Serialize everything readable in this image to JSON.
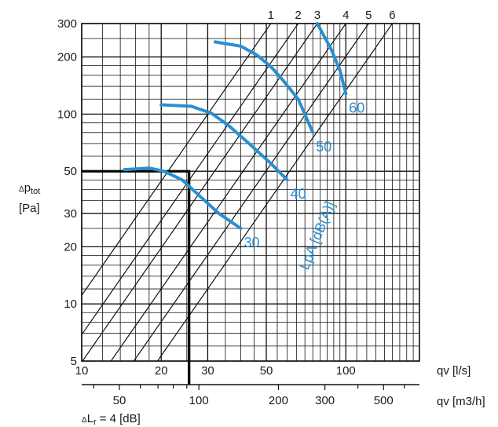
{
  "chart_data": {
    "type": "line",
    "title": "",
    "scale": "log-log",
    "xlabel": "qv [l/s]",
    "xlabel2": "qv [m3/h]",
    "ylabel_delta": "Δ",
    "ylabel": "ptot",
    "ylabel_sub": "tot",
    "ylabel_main": "p",
    "yunit": "[Pa]",
    "xlim": [
      10,
      190
    ],
    "ylim": [
      5,
      300
    ],
    "x_ticks": [
      "10",
      "20",
      "30",
      "50",
      "100"
    ],
    "x_tick_values": [
      10,
      20,
      30,
      50,
      100
    ],
    "x2_ticks": [
      "50",
      "100",
      "200",
      "300",
      "500"
    ],
    "x2_tick_values": [
      50,
      100,
      200,
      300,
      500
    ],
    "y_ticks": [
      "5",
      "10",
      "20",
      "30",
      "50",
      "100",
      "200",
      "300"
    ],
    "y_tick_values": [
      5,
      10,
      20,
      30,
      50,
      100,
      200,
      300
    ],
    "system_lines": {
      "labels": [
        "1",
        "2",
        "3",
        "4",
        "5",
        "6"
      ],
      "flow_at_300Pa": [
        52,
        66,
        78,
        100,
        122,
        150
      ]
    },
    "sound_label": "LpA [dB(A)]",
    "series": [
      {
        "name": "30",
        "x": [
          14.5,
          18,
          20.5,
          24,
          28,
          33,
          40
        ],
        "y": [
          51,
          52,
          50,
          45,
          37,
          30,
          25
        ]
      },
      {
        "name": "40",
        "x": [
          20,
          26,
          31,
          36,
          43,
          52,
          60
        ],
        "y": [
          112,
          110,
          101,
          87,
          70,
          55,
          45
        ]
      },
      {
        "name": "50",
        "x": [
          32,
          40,
          46,
          52,
          58,
          66,
          75
        ],
        "y": [
          240,
          228,
          205,
          178,
          150,
          120,
          80
        ]
      },
      {
        "name": "60",
        "x": [
          78,
          83,
          88,
          95,
          100
        ],
        "y": [
          300,
          255,
          220,
          170,
          128
        ]
      }
    ],
    "operating_point": {
      "x": 25.5,
      "y": 50
    },
    "annotation_delta": "Δ",
    "annotation_L": "L",
    "annotation_sub": "r",
    "annotation_value": "= 4 [dB]"
  }
}
